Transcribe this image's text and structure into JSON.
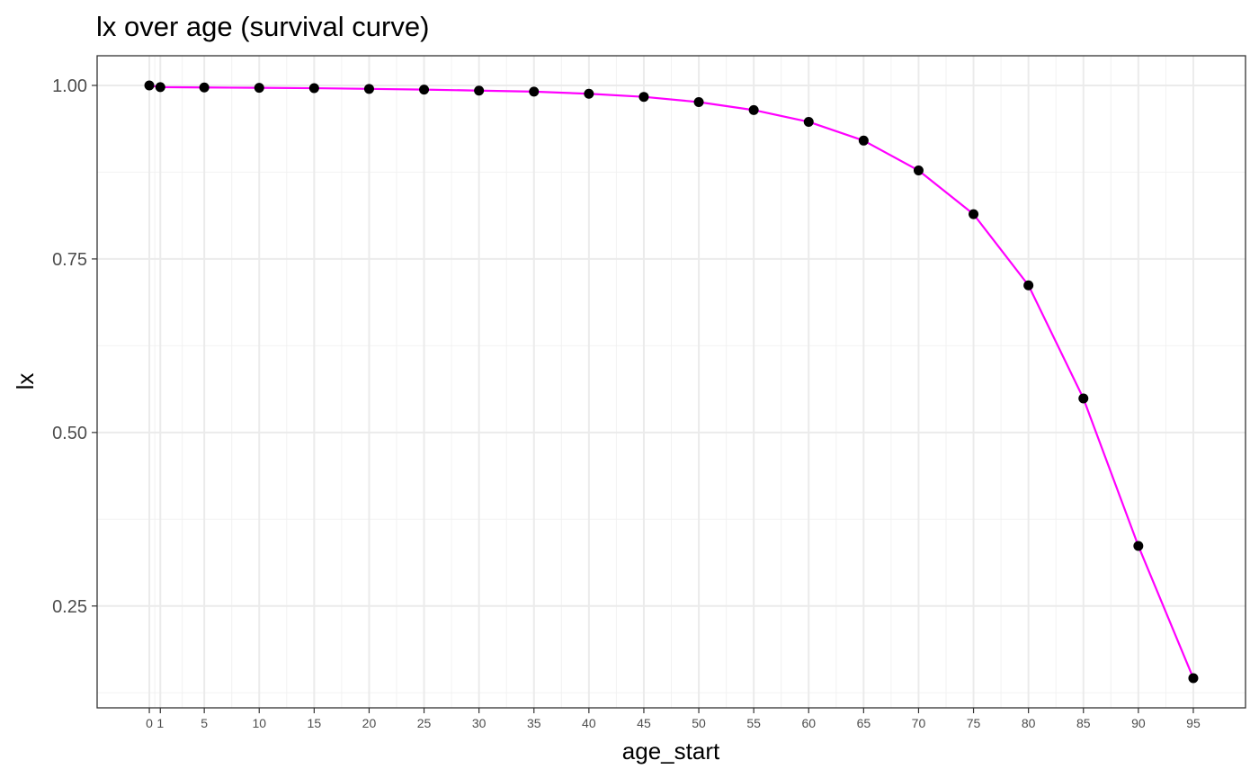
{
  "chart_data": {
    "type": "line",
    "title": "lx over age (survival curve)",
    "xlabel": "age_start",
    "ylabel": "lx",
    "x": [
      0,
      1,
      5,
      10,
      15,
      20,
      25,
      30,
      35,
      40,
      45,
      50,
      55,
      60,
      65,
      70,
      75,
      80,
      85,
      90,
      95
    ],
    "x_tick_labels": [
      "0",
      "1",
      "5",
      "10",
      "15",
      "20",
      "25",
      "30",
      "35",
      "40",
      "45",
      "50",
      "55",
      "60",
      "65",
      "70",
      "75",
      "80",
      "85",
      "90",
      "95"
    ],
    "series": [
      {
        "values": [
          1.0,
          0.9975,
          0.997,
          0.9965,
          0.996,
          0.995,
          0.994,
          0.9925,
          0.991,
          0.988,
          0.9835,
          0.976,
          0.9645,
          0.9475,
          0.9205,
          0.8775,
          0.8145,
          0.712,
          0.549,
          0.3365,
          0.146
        ],
        "line_color": "#ff00ff",
        "point_color": "#000000"
      }
    ],
    "y_ticks": [
      0.25,
      0.5,
      0.75,
      1.0
    ],
    "y_tick_labels": [
      "0.25",
      "0.50",
      "0.75",
      "1.00"
    ],
    "xlim": [
      -4.75,
      99.75
    ],
    "ylim": [
      0.1033,
      1.0427
    ],
    "grid": true,
    "legend": "none",
    "colors": {
      "background": "#ffffff",
      "panel_border": "#333333",
      "grid_major": "#ebebeb",
      "grid_minor": "#f2f2f2",
      "tick_text": "#4d4d4d"
    }
  }
}
